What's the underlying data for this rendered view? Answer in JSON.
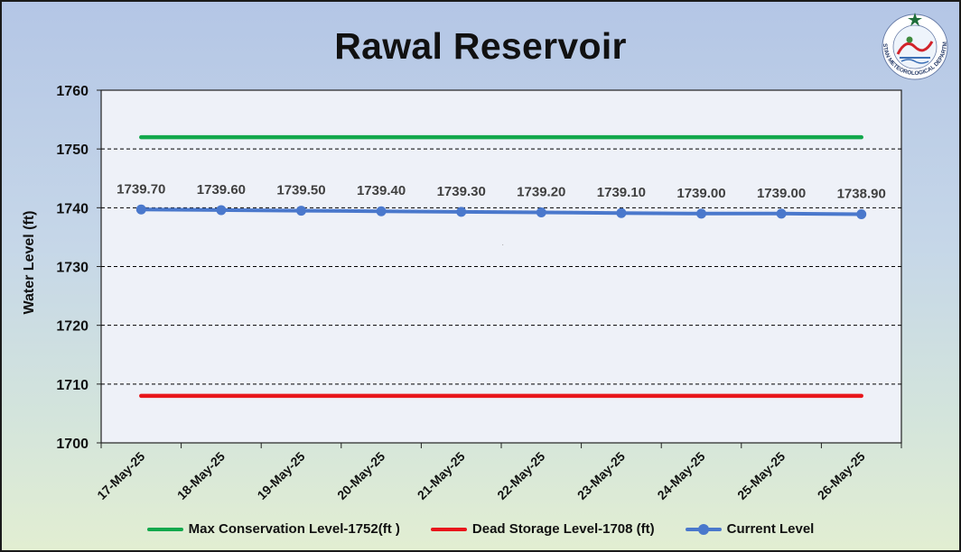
{
  "chart_data": {
    "type": "line",
    "title": "Rawal Reservoir",
    "ylabel": "Water Level (ft)",
    "xlabel": "",
    "ylim": [
      1700,
      1760
    ],
    "yticks": [
      1700,
      1710,
      1720,
      1730,
      1740,
      1750,
      1760
    ],
    "grid": "horizontal dashed",
    "legend_position": "bottom",
    "categories": [
      "17-May-25",
      "18-May-25",
      "19-May-25",
      "20-May-25",
      "21-May-25",
      "22-May-25",
      "23-May-25",
      "24-May-25",
      "25-May-25",
      "26-May-25"
    ],
    "series": [
      {
        "name": "Max Conservation Level-1752(ft )",
        "values": [
          1752,
          1752,
          1752,
          1752,
          1752,
          1752,
          1752,
          1752,
          1752,
          1752
        ],
        "color": "#12a84c",
        "markers": false
      },
      {
        "name": "Dead Storage Level-1708 (ft)",
        "values": [
          1708,
          1708,
          1708,
          1708,
          1708,
          1708,
          1708,
          1708,
          1708,
          1708
        ],
        "color": "#e8161b",
        "markers": false
      },
      {
        "name": "Current Level",
        "values": [
          1739.7,
          1739.6,
          1739.5,
          1739.4,
          1739.3,
          1739.2,
          1739.1,
          1739.0,
          1739.0,
          1738.9
        ],
        "data_labels": [
          "1739.70",
          "1739.60",
          "1739.50",
          "1739.40",
          "1739.30",
          "1739.20",
          "1739.10",
          "1739.00",
          "1739.00",
          "1738.90"
        ],
        "color": "#4a78cc",
        "markers": true
      }
    ]
  },
  "logo": {
    "text": "PAKISTAN METEOROLOGICAL DEPARTMENT",
    "icon": "pmd-emblem-icon"
  },
  "colors": {
    "plot_background": "#eef1f8",
    "grid": "#000000"
  }
}
